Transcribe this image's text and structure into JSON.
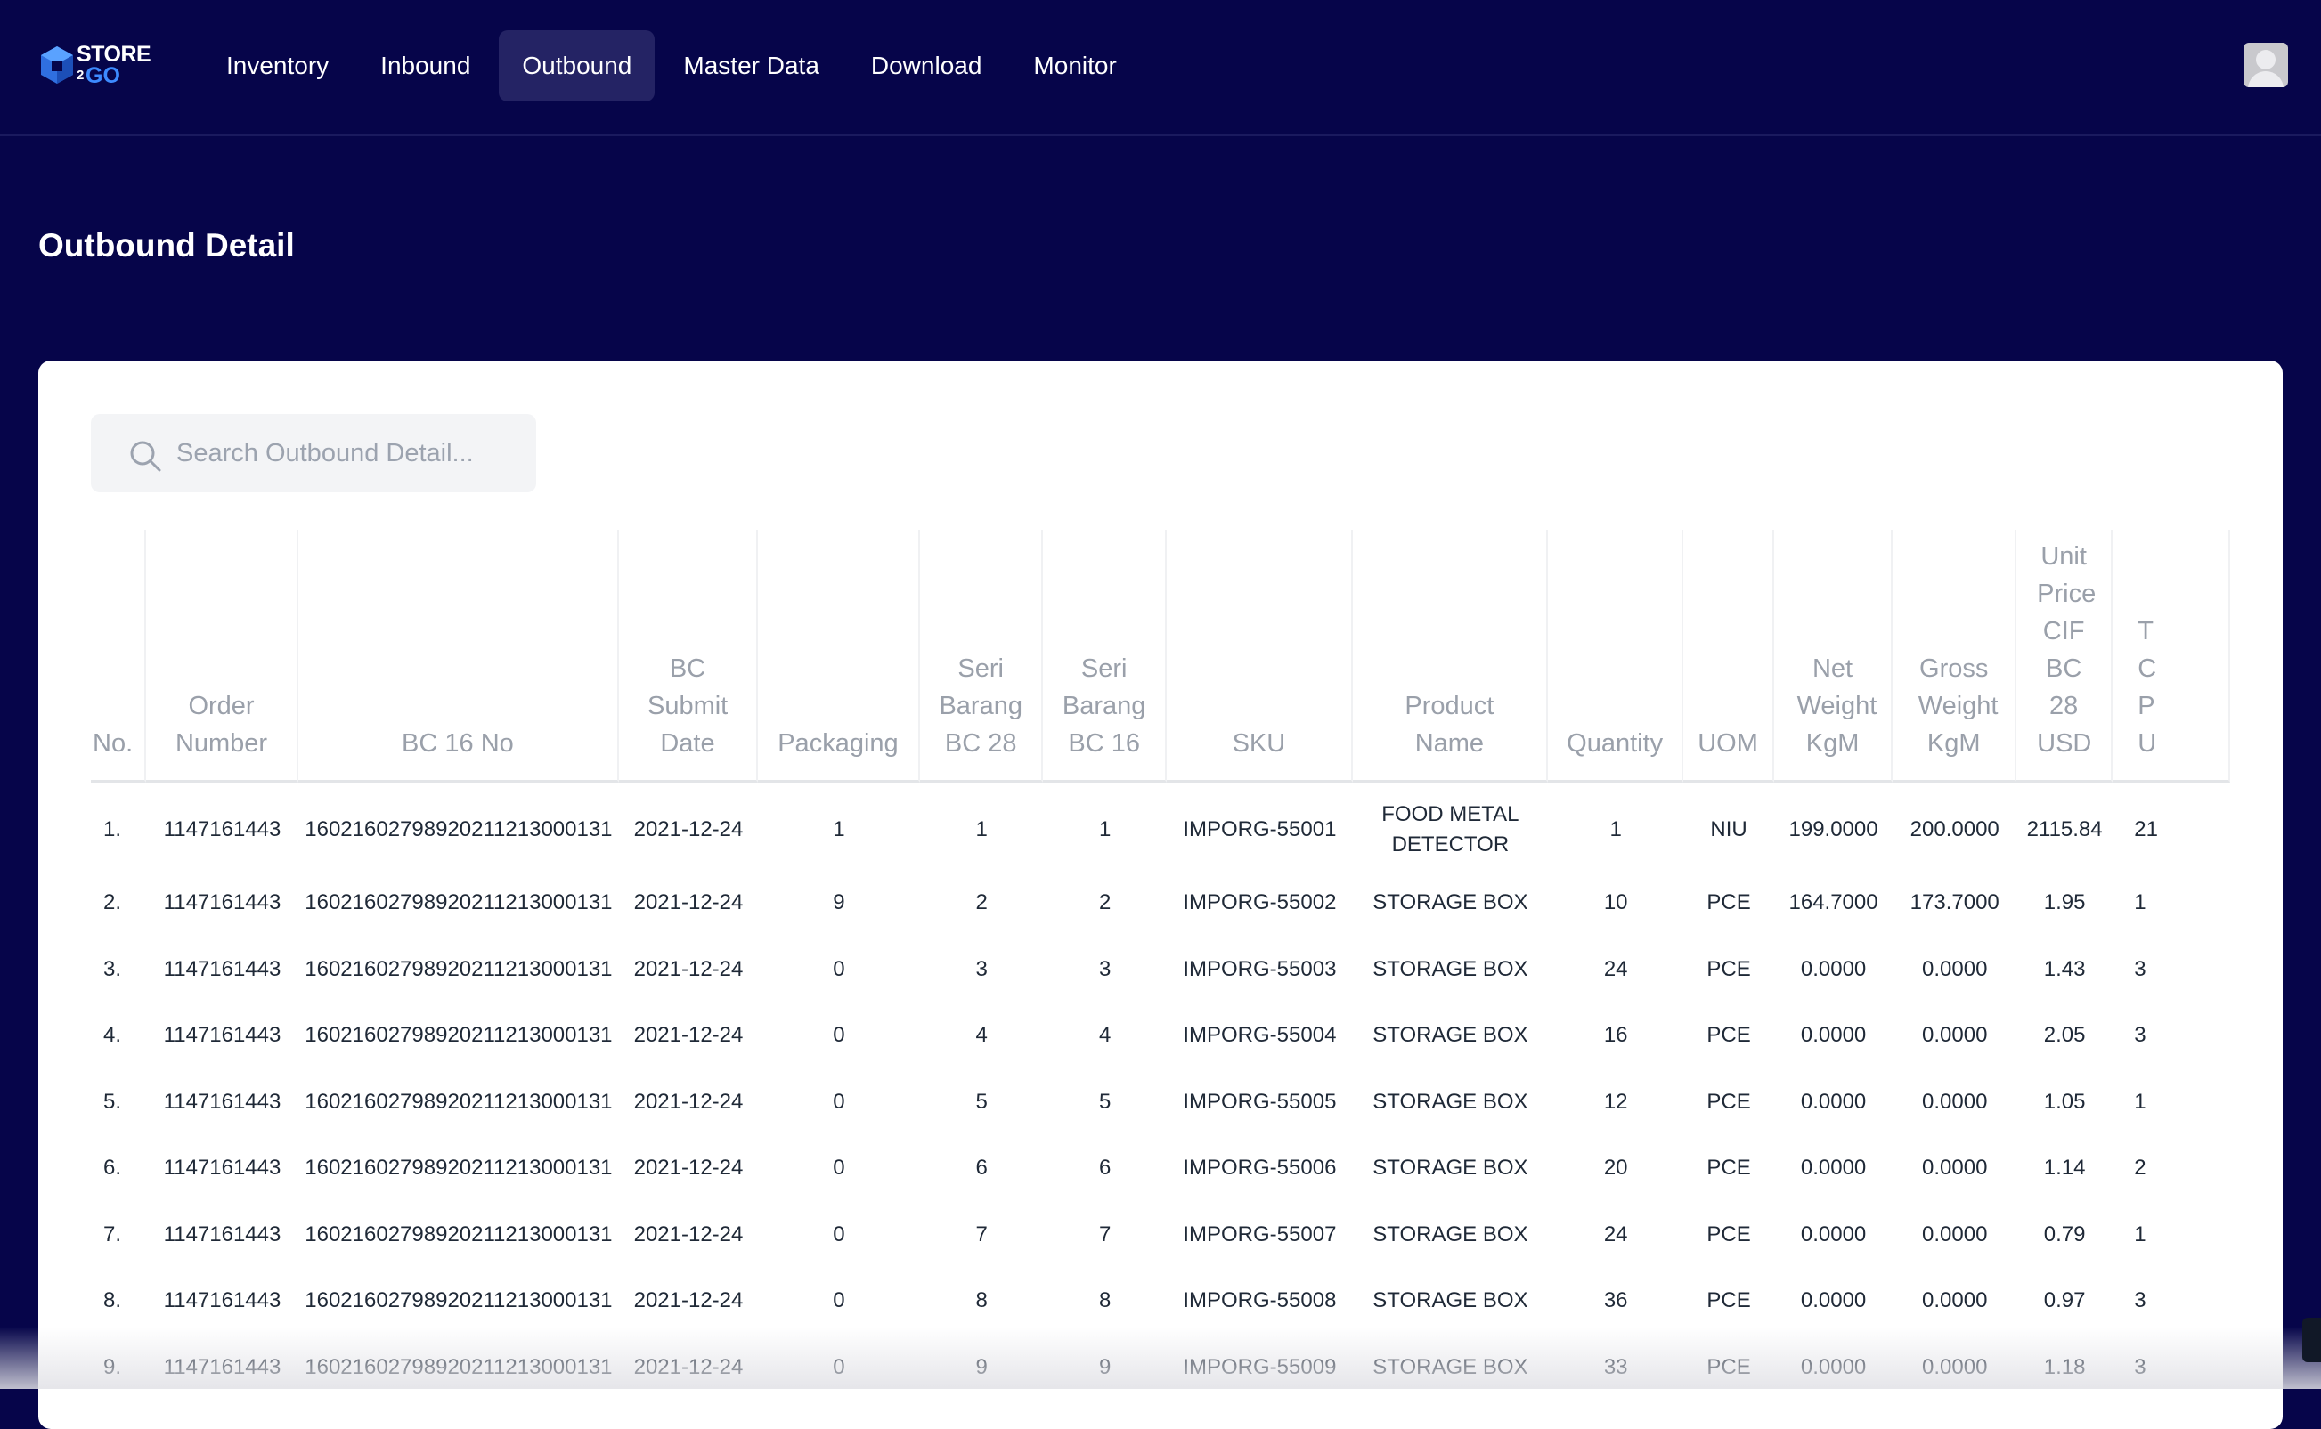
{
  "brand": {
    "top": "STORE",
    "num": "2",
    "bottom": "GO"
  },
  "nav": {
    "items": [
      {
        "label": "Inventory"
      },
      {
        "label": "Inbound"
      },
      {
        "label": "Outbound",
        "active": true
      },
      {
        "label": "Master Data"
      },
      {
        "label": "Download"
      },
      {
        "label": "Monitor"
      }
    ]
  },
  "page": {
    "title": "Outbound Detail"
  },
  "search": {
    "placeholder": "Search Outbound Detail..."
  },
  "table": {
    "columns": [
      "No.",
      "Order Number",
      "BC 16 No",
      "BC Submit Date",
      "Packaging",
      "Seri Barang BC 28",
      "Seri Barang BC 16",
      "SKU",
      "Product Name",
      "Quantity",
      "UOM",
      "Net Weight KgM",
      "Gross Weight KgM",
      "Unit Price CIF BC 28 USD",
      "T C P U"
    ],
    "rows": [
      [
        "1.",
        "1147161443",
        "160216027989202112130001 31",
        "2021-12-24",
        "1",
        "1",
        "1",
        "IMPORG-55001",
        "FOOD METAL DETECTOR",
        "1",
        "NIU",
        "199.0000",
        "200.0000",
        "2115.84",
        "21"
      ],
      [
        "2.",
        "1147161443",
        "16021602798920211213000131",
        "2021-12-24",
        "9",
        "2",
        "2",
        "IMPORG-55002",
        "STORAGE BOX",
        "10",
        "PCE",
        "164.7000",
        "173.7000",
        "1.95",
        "1"
      ],
      [
        "3.",
        "1147161443",
        "16021602798920211213000131",
        "2021-12-24",
        "0",
        "3",
        "3",
        "IMPORG-55003",
        "STORAGE BOX",
        "24",
        "PCE",
        "0.0000",
        "0.0000",
        "1.43",
        "3"
      ],
      [
        "4.",
        "1147161443",
        "16021602798920211213000131",
        "2021-12-24",
        "0",
        "4",
        "4",
        "IMPORG-55004",
        "STORAGE BOX",
        "16",
        "PCE",
        "0.0000",
        "0.0000",
        "2.05",
        "3"
      ],
      [
        "5.",
        "1147161443",
        "16021602798920211213000131",
        "2021-12-24",
        "0",
        "5",
        "5",
        "IMPORG-55005",
        "STORAGE BOX",
        "12",
        "PCE",
        "0.0000",
        "0.0000",
        "1.05",
        "1"
      ],
      [
        "6.",
        "1147161443",
        "16021602798920211213000131",
        "2021-12-24",
        "0",
        "6",
        "6",
        "IMPORG-55006",
        "STORAGE BOX",
        "20",
        "PCE",
        "0.0000",
        "0.0000",
        "1.14",
        "2"
      ],
      [
        "7.",
        "1147161443",
        "16021602798920211213000131",
        "2021-12-24",
        "0",
        "7",
        "7",
        "IMPORG-55007",
        "STORAGE BOX",
        "24",
        "PCE",
        "0.0000",
        "0.0000",
        "0.79",
        "1"
      ],
      [
        "8.",
        "1147161443",
        "16021602798920211213000131",
        "2021-12-24",
        "0",
        "8",
        "8",
        "IMPORG-55008",
        "STORAGE BOX",
        "36",
        "PCE",
        "0.0000",
        "0.0000",
        "0.97",
        "3"
      ],
      [
        "9.",
        "1147161443",
        "16021602798920211213000131",
        "2021-12-24",
        "0",
        "9",
        "9",
        "IMPORG-55009",
        "STORAGE BOX",
        "33",
        "PCE",
        "0.0000",
        "0.0000",
        "1.18",
        "3"
      ]
    ]
  }
}
